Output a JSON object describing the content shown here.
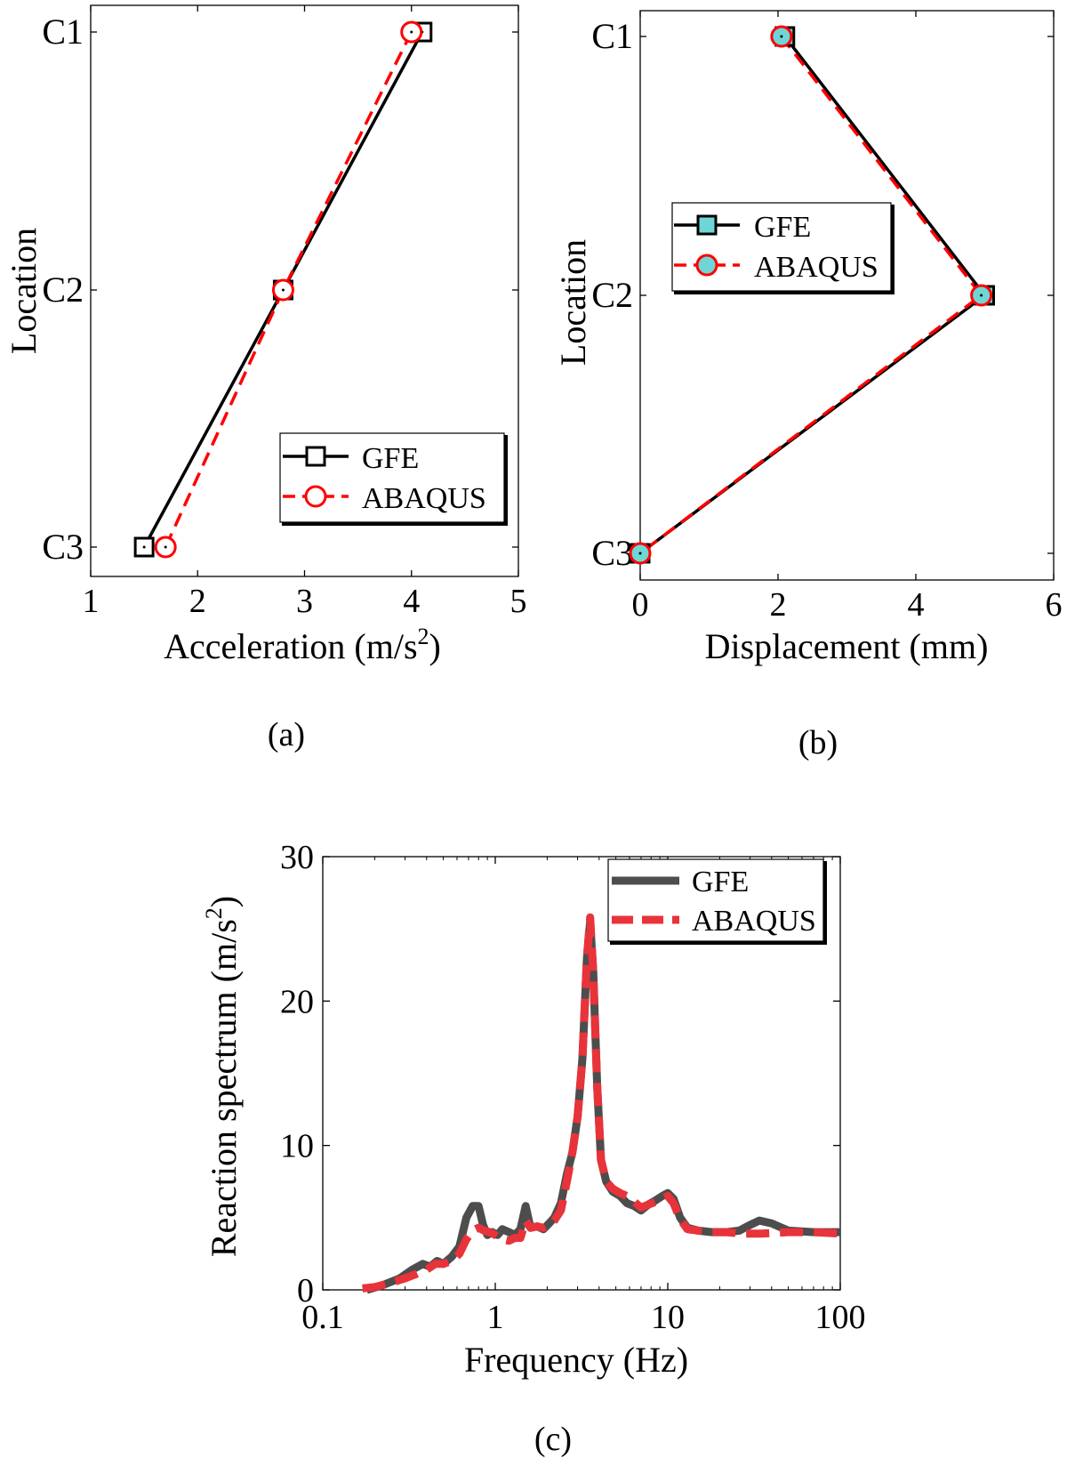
{
  "chart_data": [
    {
      "panel": "a",
      "caption": "(a)",
      "type": "line",
      "orientation": "horizontal",
      "xlabel": "Acceleration (m/s",
      "xlabel_sup": "2",
      "xlabel_end": ")",
      "ylabel": "Location",
      "xlim": [
        1,
        5
      ],
      "xticks": [
        "1",
        "2",
        "3",
        "4",
        "5"
      ],
      "categories": [
        "C1",
        "C2",
        "C3"
      ],
      "series": [
        {
          "name": "GFE",
          "values": [
            4.1,
            2.8,
            1.5
          ],
          "color": "#000000",
          "dash": "solid",
          "marker": "square"
        },
        {
          "name": "ABAQUS",
          "values": [
            4.0,
            2.8,
            1.7
          ],
          "color": "#ff0000",
          "dash": "dashed",
          "marker": "circle"
        }
      ],
      "legend": [
        "GFE",
        "ABAQUS"
      ],
      "legend_position": "bottom-right"
    },
    {
      "panel": "b",
      "caption": "(b)",
      "type": "line",
      "orientation": "horizontal",
      "xlabel": "Displacement (mm)",
      "ylabel": "Location",
      "xlim": [
        0,
        6
      ],
      "xticks": [
        "0",
        "2",
        "4",
        "6"
      ],
      "categories": [
        "C1",
        "C2",
        "C3"
      ],
      "series": [
        {
          "name": "GFE",
          "values": [
            2.1,
            5.0,
            0.0
          ],
          "color": "#000000",
          "dash": "solid",
          "marker": "square-filled-cyan"
        },
        {
          "name": "ABAQUS",
          "values": [
            2.05,
            4.95,
            0.0
          ],
          "color": "#ff0000",
          "dash": "dashed",
          "marker": "circle-filled-cyan"
        }
      ],
      "legend": [
        "GFE",
        "ABAQUS"
      ],
      "legend_position": "middle-left"
    },
    {
      "panel": "c",
      "caption": "(c)",
      "type": "line",
      "xscale": "log",
      "xlabel": "Frequency (Hz)",
      "ylabel": "Reaction spectrum (m/s",
      "ylabel_sup": "2",
      "ylabel_end": ")",
      "xlim": [
        0.1,
        100
      ],
      "ylim": [
        0,
        30
      ],
      "xticks": [
        "0.1",
        "1",
        "10",
        "100"
      ],
      "yticks": [
        "0",
        "10",
        "20",
        "30"
      ],
      "series": [
        {
          "name": "GFE",
          "color": "#4d4d4d",
          "dash": "solid",
          "x": [
            0.18,
            0.22,
            0.28,
            0.33,
            0.38,
            0.42,
            0.46,
            0.5,
            0.56,
            0.62,
            0.68,
            0.74,
            0.8,
            0.85,
            0.9,
            0.96,
            1.03,
            1.1,
            1.2,
            1.3,
            1.4,
            1.5,
            1.6,
            1.75,
            1.9,
            2.05,
            2.2,
            2.4,
            2.6,
            2.8,
            3.0,
            3.2,
            3.4,
            3.55,
            3.7,
            3.9,
            4.1,
            4.4,
            4.8,
            5.3,
            5.8,
            6.4,
            7.0,
            7.7,
            8.5,
            9.3,
            10.0,
            10.8,
            11.8,
            13.0,
            15.0,
            18.0,
            22.0,
            26.0,
            30.0,
            34.0,
            40.0,
            50.0,
            70.0,
            100.0
          ],
          "y": [
            0.0,
            0.3,
            0.8,
            1.4,
            1.8,
            1.6,
            2.0,
            1.8,
            2.3,
            3.0,
            5.0,
            5.8,
            5.8,
            4.5,
            3.8,
            4.0,
            3.8,
            4.2,
            4.0,
            3.8,
            4.2,
            5.8,
            4.3,
            4.4,
            4.2,
            4.6,
            5.0,
            6.0,
            8.0,
            9.5,
            12.0,
            16.0,
            23.0,
            25.5,
            22.0,
            14.0,
            9.0,
            7.5,
            6.8,
            6.5,
            6.0,
            5.8,
            5.5,
            5.9,
            6.2,
            6.5,
            6.7,
            6.3,
            5.0,
            4.3,
            4.1,
            4.0,
            4.0,
            4.1,
            4.5,
            4.8,
            4.6,
            4.1,
            4.0,
            4.0
          ]
        },
        {
          "name": "ABAQUS",
          "color": "#e8333a",
          "dash": "dashed",
          "x": [
            0.17,
            0.2,
            0.25,
            0.3,
            0.35,
            0.4,
            0.45,
            0.5,
            0.56,
            0.62,
            0.68,
            0.74,
            0.8,
            0.86,
            0.93,
            1.0,
            1.1,
            1.2,
            1.3,
            1.4,
            1.5,
            1.6,
            1.75,
            1.9,
            2.05,
            2.2,
            2.4,
            2.6,
            2.8,
            3.0,
            3.2,
            3.4,
            3.55,
            3.7,
            3.9,
            4.1,
            4.4,
            4.8,
            5.3,
            5.8,
            6.4,
            7.0,
            7.7,
            8.5,
            9.3,
            10.0,
            10.8,
            11.8,
            13.0,
            15.0,
            18.0,
            22.0,
            26.0,
            30.0,
            35.0,
            50.0,
            70.0,
            100.0
          ],
          "y": [
            0.1,
            0.2,
            0.5,
            0.8,
            1.1,
            1.4,
            1.8,
            1.8,
            2.0,
            2.5,
            3.5,
            4.1,
            4.3,
            4.1,
            4.0,
            3.8,
            3.5,
            3.4,
            3.6,
            3.6,
            4.8,
            4.3,
            4.4,
            4.3,
            4.5,
            4.8,
            5.5,
            7.5,
            9.5,
            12.0,
            16.0,
            23.0,
            25.8,
            22.0,
            14.0,
            9.0,
            7.5,
            7.0,
            6.7,
            6.5,
            6.1,
            5.7,
            5.9,
            6.1,
            6.3,
            6.5,
            6.0,
            4.9,
            4.2,
            4.1,
            4.0,
            4.0,
            3.9,
            3.9,
            3.9,
            4.0,
            4.0,
            3.9
          ]
        }
      ],
      "legend": [
        "GFE",
        "ABAQUS"
      ],
      "legend_position": "top-right"
    }
  ]
}
